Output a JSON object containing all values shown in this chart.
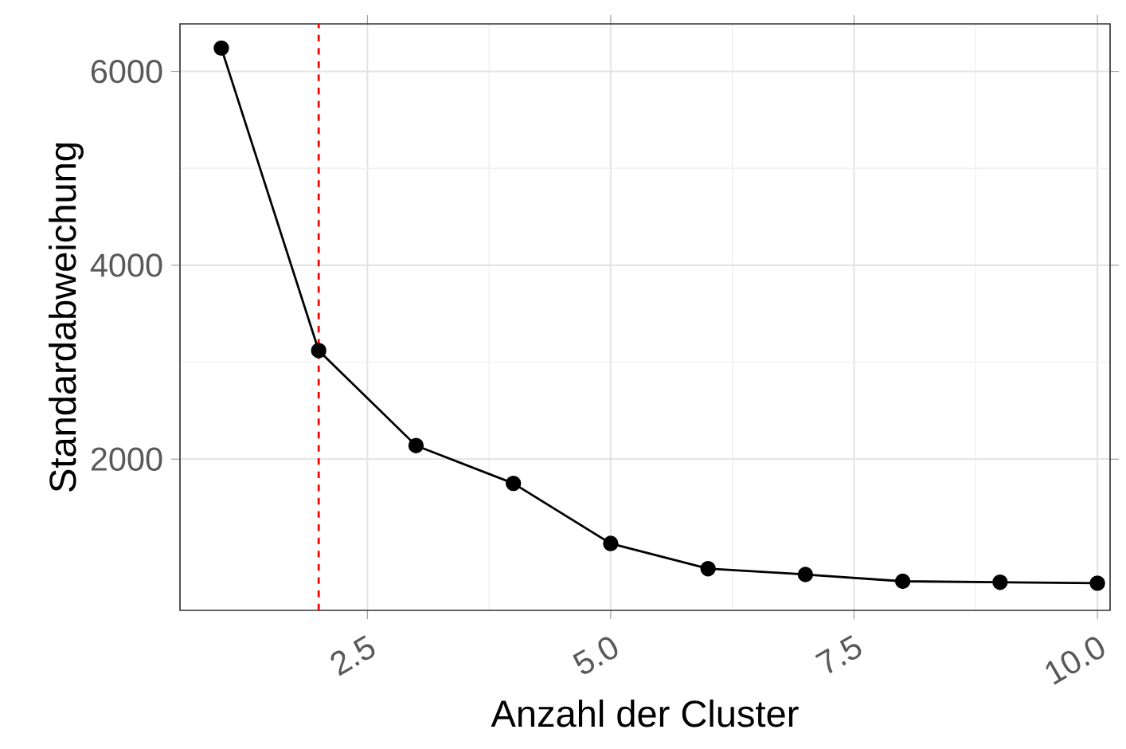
{
  "chart_data": {
    "type": "line",
    "xlabel": "Anzahl der Cluster",
    "ylabel": "Standardabweichung",
    "x": [
      1,
      2,
      3,
      4,
      5,
      6,
      7,
      8,
      9,
      10
    ],
    "values": [
      6240,
      3120,
      2140,
      1750,
      1130,
      870,
      810,
      740,
      730,
      720
    ],
    "color": "#000000",
    "marker": "circle",
    "line_style": "solid",
    "grid": true,
    "xlim": [
      0.575,
      10.13
    ],
    "ylim": [
      440,
      6490
    ],
    "xticks": [
      {
        "value": 2.5,
        "label": "2.5"
      },
      {
        "value": 5,
        "label": "5.0"
      },
      {
        "value": 7.5,
        "label": "7.5"
      },
      {
        "value": 10,
        "label": "10.0"
      }
    ],
    "yticks": [
      2000,
      4000,
      6000
    ],
    "ref_lines": [
      {
        "axis": "x",
        "value": 2,
        "color": "#ff0000",
        "line_style": "dashed"
      }
    ]
  }
}
